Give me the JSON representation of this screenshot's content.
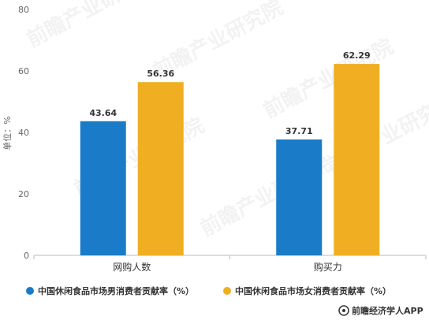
{
  "chart_data": {
    "type": "bar",
    "categories": [
      "网购人数",
      "购买力"
    ],
    "series": [
      {
        "name": "中国休闲食品市场男消费者贡献率（%）",
        "values": [
          43.64,
          37.71
        ],
        "color": "#1a7cc8"
      },
      {
        "name": "中国休闲食品市场女消费者贡献率（%）",
        "values": [
          56.36,
          62.29
        ],
        "color": "#f0ae22"
      }
    ],
    "ylabel": "单位：%",
    "ylim": [
      0,
      80
    ],
    "yticks": [
      0,
      20,
      40,
      60,
      80
    ],
    "grid": false,
    "legend": "bottom"
  },
  "source": {
    "text": "前瞻经济学人APP"
  },
  "watermark": {
    "text": "前瞻产业研究院",
    "icon": "qianzhan-logo-icon"
  }
}
